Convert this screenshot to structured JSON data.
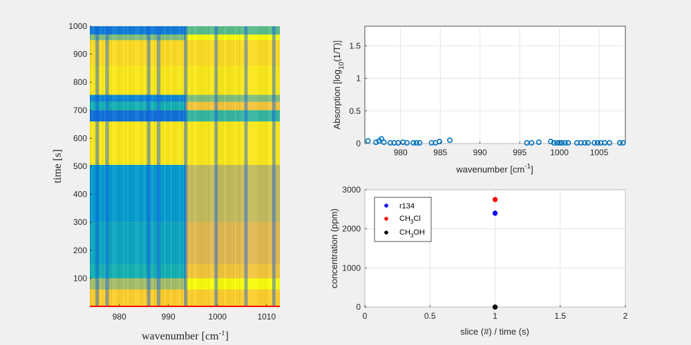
{
  "chart_data": [
    {
      "type": "heatmap",
      "xlabel": "wavenumber [cm",
      "xlabel_sup": "-1",
      "xlabel_end": "]",
      "ylabel": "time [s]",
      "xlim": [
        974,
        1012.7
      ],
      "ylim": [
        0,
        1000
      ],
      "xticks": [
        980,
        990,
        1000,
        1010
      ],
      "yticks": [
        100,
        200,
        300,
        400,
        500,
        600,
        700,
        800,
        900,
        1000
      ],
      "grid": false,
      "colormap": "parula",
      "bands": [
        {
          "y": [
            970,
            1000
          ],
          "level": 0.3
        },
        {
          "y": [
            950,
            970
          ],
          "level": 0.7
        },
        {
          "y": [
            860,
            950
          ],
          "level": 0.95
        },
        {
          "y": [
            760,
            860
          ],
          "level": 0.97
        },
        {
          "y": [
            730,
            755
          ],
          "level": 0.35
        },
        {
          "y": [
            700,
            730
          ],
          "level": 0.55
        },
        {
          "y": [
            660,
            700
          ],
          "level": 0.25
        },
        {
          "y": [
            510,
            655
          ],
          "level": 0.97
        },
        {
          "y": [
            300,
            505
          ],
          "level": 0.45
        },
        {
          "y": [
            150,
            300
          ],
          "level": 0.5
        },
        {
          "y": [
            100,
            150
          ],
          "level": 0.55
        },
        {
          "y": [
            60,
            100
          ],
          "level": 0.75
        },
        {
          "y": [
            0,
            60
          ],
          "level": 0.93
        }
      ],
      "absorption_lines": [
        975.5,
        977.5,
        986,
        988,
        993.5,
        999.7,
        1005.8,
        1011.5
      ],
      "saturated_region": [
        993.5,
        1012.7
      ],
      "baseline_color": "#ff0000"
    },
    {
      "type": "scatter",
      "xlabel": "wavenumber [cm",
      "xlabel_sup": "-1",
      "xlabel_end": "]",
      "ylabel_pre": "Absorption [log",
      "ylabel_sub": "10",
      "ylabel_post": "(1/T)]",
      "xlim": [
        975.5,
        1008.3
      ],
      "ylim": [
        0,
        1.8
      ],
      "xticks": [
        980,
        985,
        990,
        995,
        1000,
        1005
      ],
      "yticks": [
        0,
        0.5,
        1,
        1.5
      ],
      "grid": true,
      "marker": "open-circle",
      "color": "#0072bd",
      "x": [
        975.9,
        976.9,
        977.3,
        977.6,
        977.9,
        978.7,
        979.2,
        979.7,
        980.3,
        980.8,
        981.6,
        982.0,
        982.4,
        983.9,
        984.4,
        984.9,
        986.2,
        995.9,
        996.5,
        997.4,
        998.9,
        999.3,
        999.7,
        1000.0,
        1000.3,
        1000.7,
        1001.1,
        1002.2,
        1002.7,
        1003.2,
        1003.6,
        1004.4,
        1004.8,
        1005.2,
        1005.7,
        1006.3,
        1007.6,
        1008.0
      ],
      "y": [
        0.04,
        0.02,
        0.04,
        0.07,
        0.02,
        0.01,
        0.01,
        0.01,
        0.02,
        0.01,
        0.01,
        0.01,
        0.01,
        0.01,
        0.01,
        0.03,
        0.05,
        0.01,
        0.01,
        0.02,
        0.03,
        0.01,
        0.01,
        0.01,
        0.01,
        0.01,
        0.01,
        0.01,
        0.01,
        0.01,
        0.01,
        0.01,
        0.01,
        0.01,
        0.01,
        0.01,
        0.01,
        0.01
      ]
    },
    {
      "type": "scatter",
      "xlabel": "slice (#) / time (s)",
      "ylabel": "concentration (ppm)",
      "xlim": [
        0,
        2
      ],
      "ylim": [
        0,
        3000
      ],
      "xticks": [
        0,
        0.5,
        1,
        1.5,
        2
      ],
      "xticklabels": [
        "0",
        "0.5",
        "1",
        "1.5",
        "2"
      ],
      "yticks": [
        0,
        1000,
        2000,
        3000
      ],
      "grid": true,
      "legend_position": "top-left",
      "series": [
        {
          "name": "r134",
          "color": "#0000ff",
          "x": [
            1
          ],
          "y": [
            2400
          ]
        },
        {
          "name_pre": "CH",
          "name_sub": "3",
          "name_post": "Cl",
          "color": "#ff0000",
          "x": [
            1
          ],
          "y": [
            2750
          ]
        },
        {
          "name_pre": "CH",
          "name_sub": "3",
          "name_post": "OH",
          "color": "#000000",
          "x": [
            1
          ],
          "y": [
            0
          ]
        }
      ]
    }
  ]
}
